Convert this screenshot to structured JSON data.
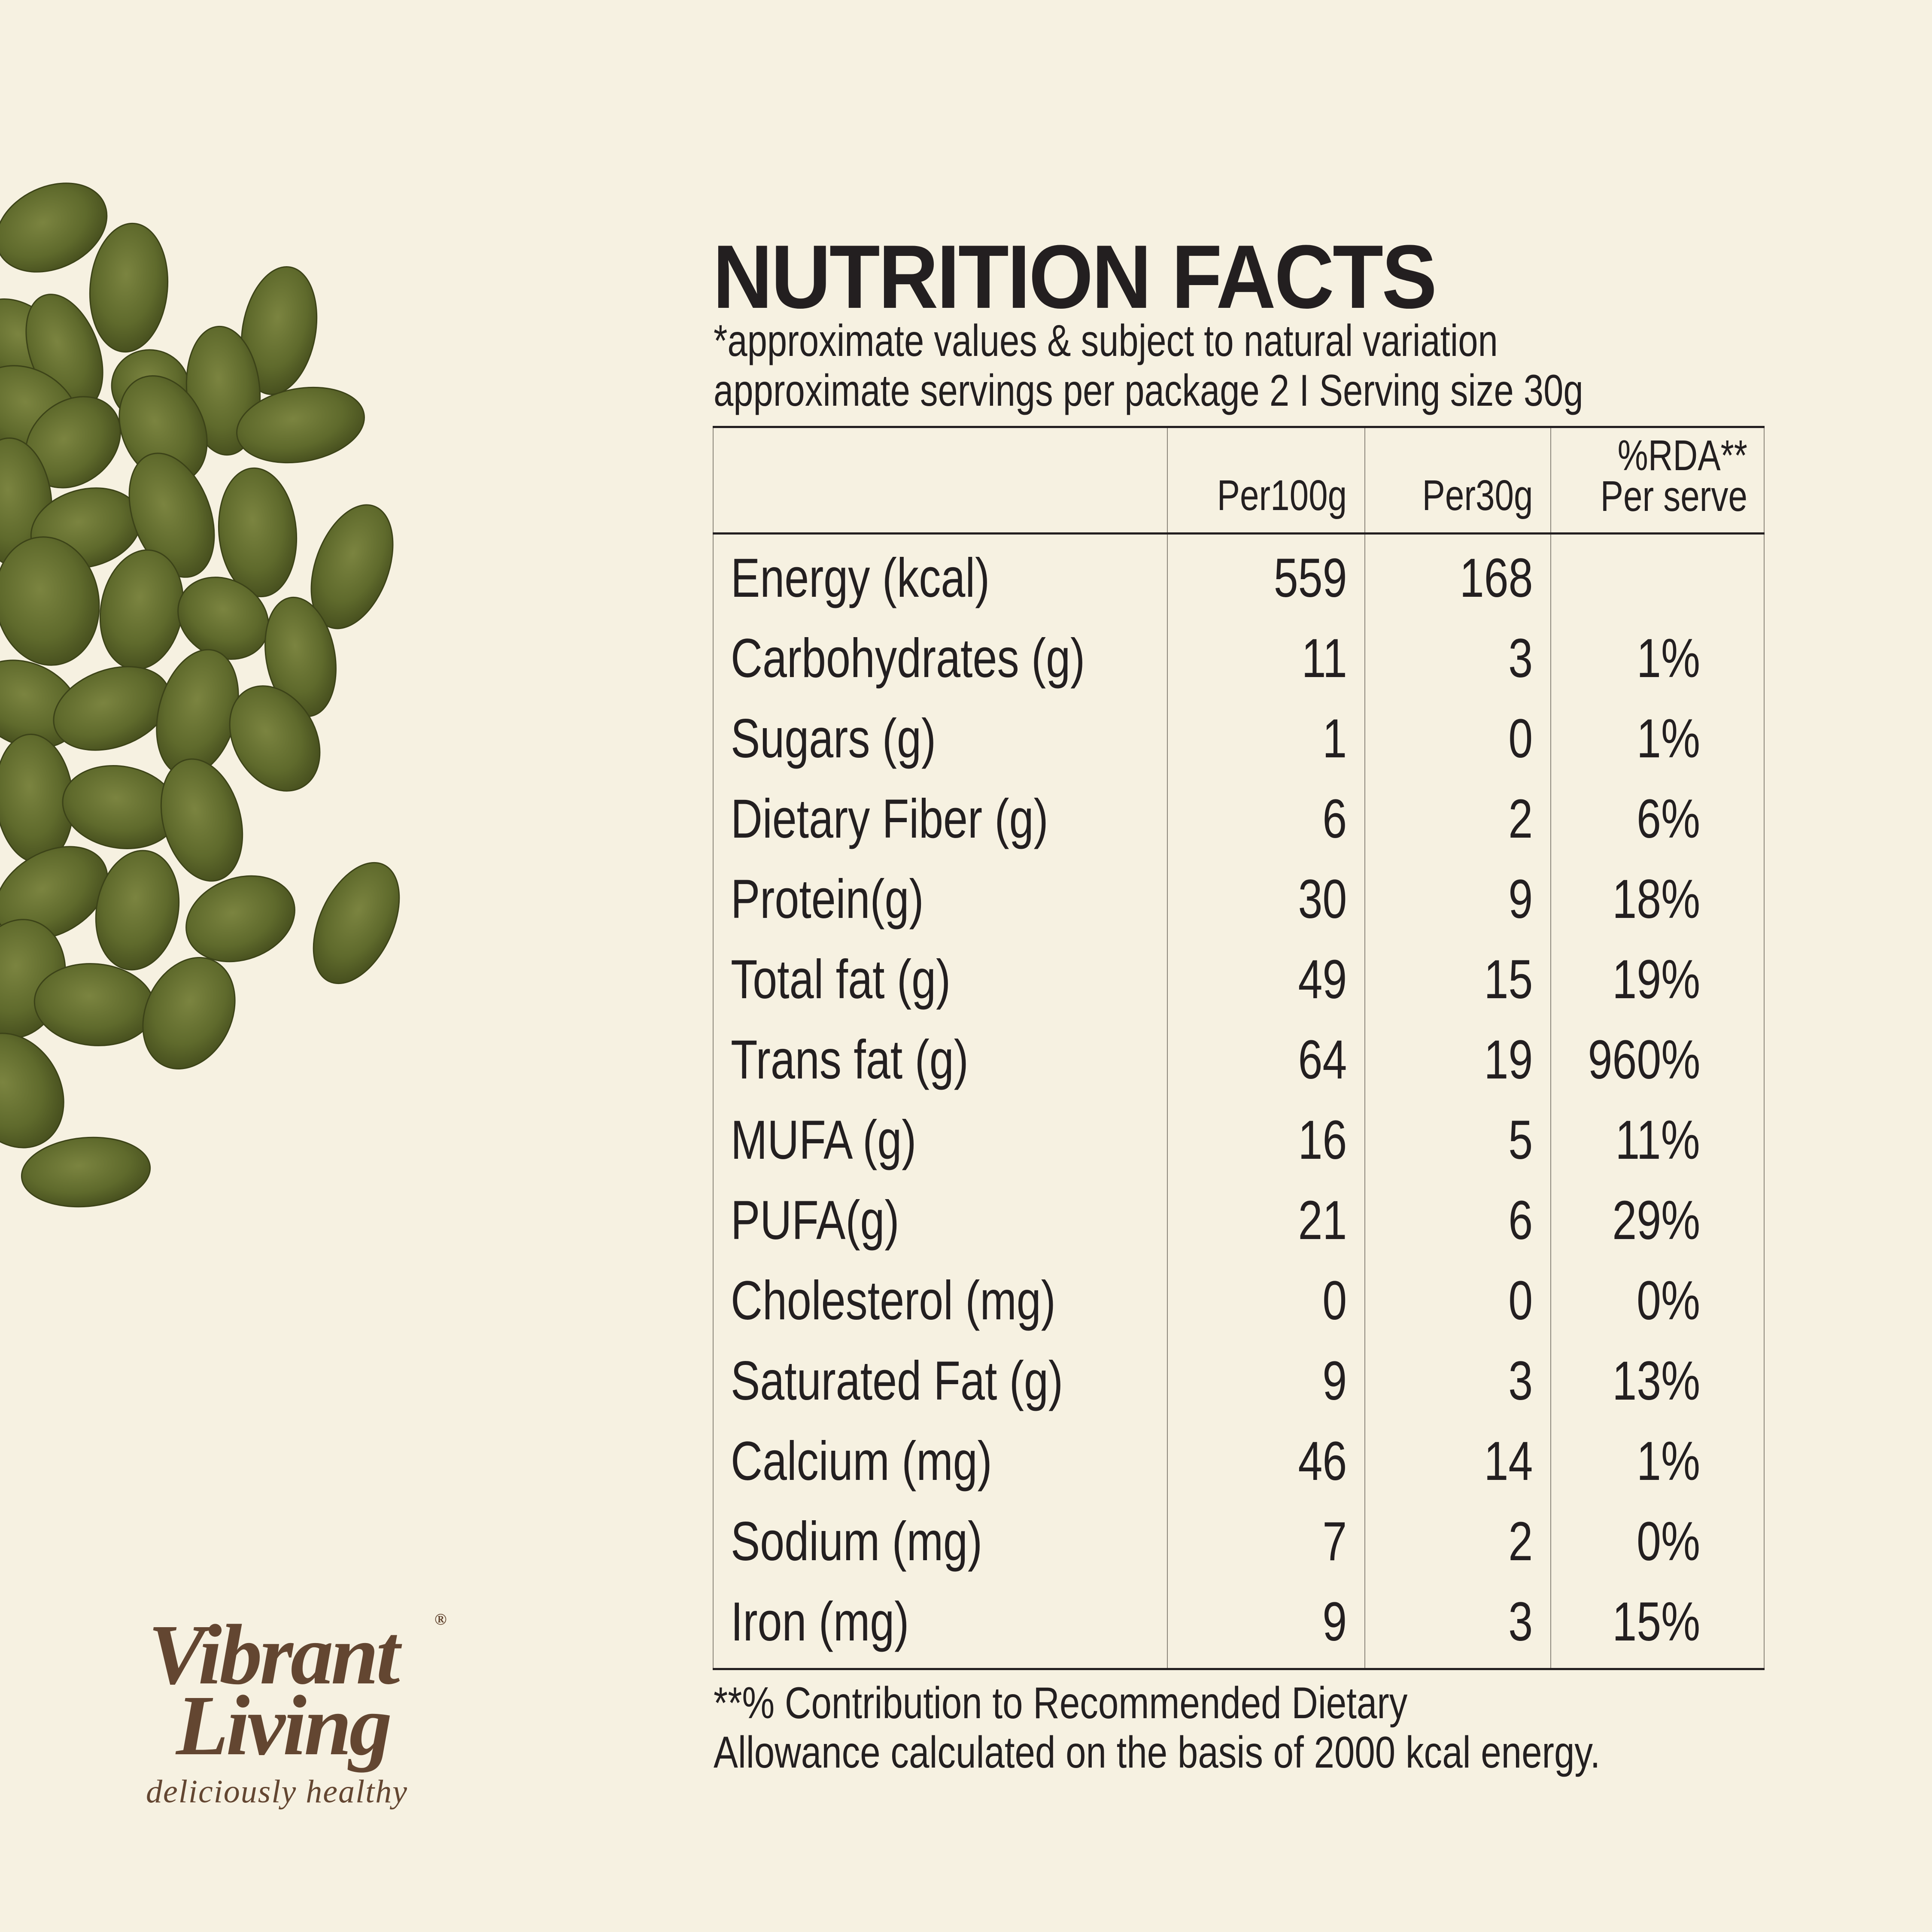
{
  "title": "NUTRITION FACTS",
  "subtitle": {
    "line1": "*approximate values & subject to natural variation",
    "line2": "approximate servings per package 2 I Serving size 30g"
  },
  "table": {
    "headers": {
      "nutrient": "",
      "per100g": "Per100g",
      "per30g": "Per30g",
      "rda_line1": "%RDA**",
      "rda_line2": "Per serve"
    },
    "rows": [
      {
        "nutrient": "Energy (kcal)",
        "per100g": "559",
        "per30g": "168",
        "rda": ""
      },
      {
        "nutrient": "Carbohydrates (g)",
        "per100g": "11",
        "per30g": "3",
        "rda": "1%"
      },
      {
        "nutrient": "Sugars (g)",
        "per100g": "1",
        "per30g": "0",
        "rda": "1%"
      },
      {
        "nutrient": "Dietary Fiber (g)",
        "per100g": "6",
        "per30g": "2",
        "rda": "6%"
      },
      {
        "nutrient": "Protein(g)",
        "per100g": "30",
        "per30g": "9",
        "rda": "18%"
      },
      {
        "nutrient": "Total fat (g)",
        "per100g": "49",
        "per30g": "15",
        "rda": "19%"
      },
      {
        "nutrient": "Trans fat (g)",
        "per100g": "64",
        "per30g": "19",
        "rda": "960%"
      },
      {
        "nutrient": "MUFA (g)",
        "per100g": "16",
        "per30g": "5",
        "rda": "11%"
      },
      {
        "nutrient": "PUFA(g)",
        "per100g": "21",
        "per30g": "6",
        "rda": "29%"
      },
      {
        "nutrient": "Cholesterol (mg)",
        "per100g": "0",
        "per30g": "0",
        "rda": "0%"
      },
      {
        "nutrient": "Saturated Fat (g)",
        "per100g": "9",
        "per30g": "3",
        "rda": "13%"
      },
      {
        "nutrient": "Calcium (mg)",
        "per100g": "46",
        "per30g": "14",
        "rda": "1%"
      },
      {
        "nutrient": "Sodium (mg)",
        "per100g": "7",
        "per30g": "2",
        "rda": "0%"
      },
      {
        "nutrient": "Iron (mg)",
        "per100g": "9",
        "per30g": "3",
        "rda": "15%"
      }
    ]
  },
  "footnote": {
    "line1": "**% Contribution to Recommended Dietary",
    "line2": "Allowance calculated on the basis of 2000 kcal energy."
  },
  "brand": {
    "line1": "Vibrant",
    "line2": "Living",
    "registered": "®",
    "tagline": "deliciously healthy"
  },
  "colors": {
    "background": "#f6f1e1",
    "text": "#231f20",
    "brand": "#634631",
    "seed": "#5f6a2c"
  }
}
